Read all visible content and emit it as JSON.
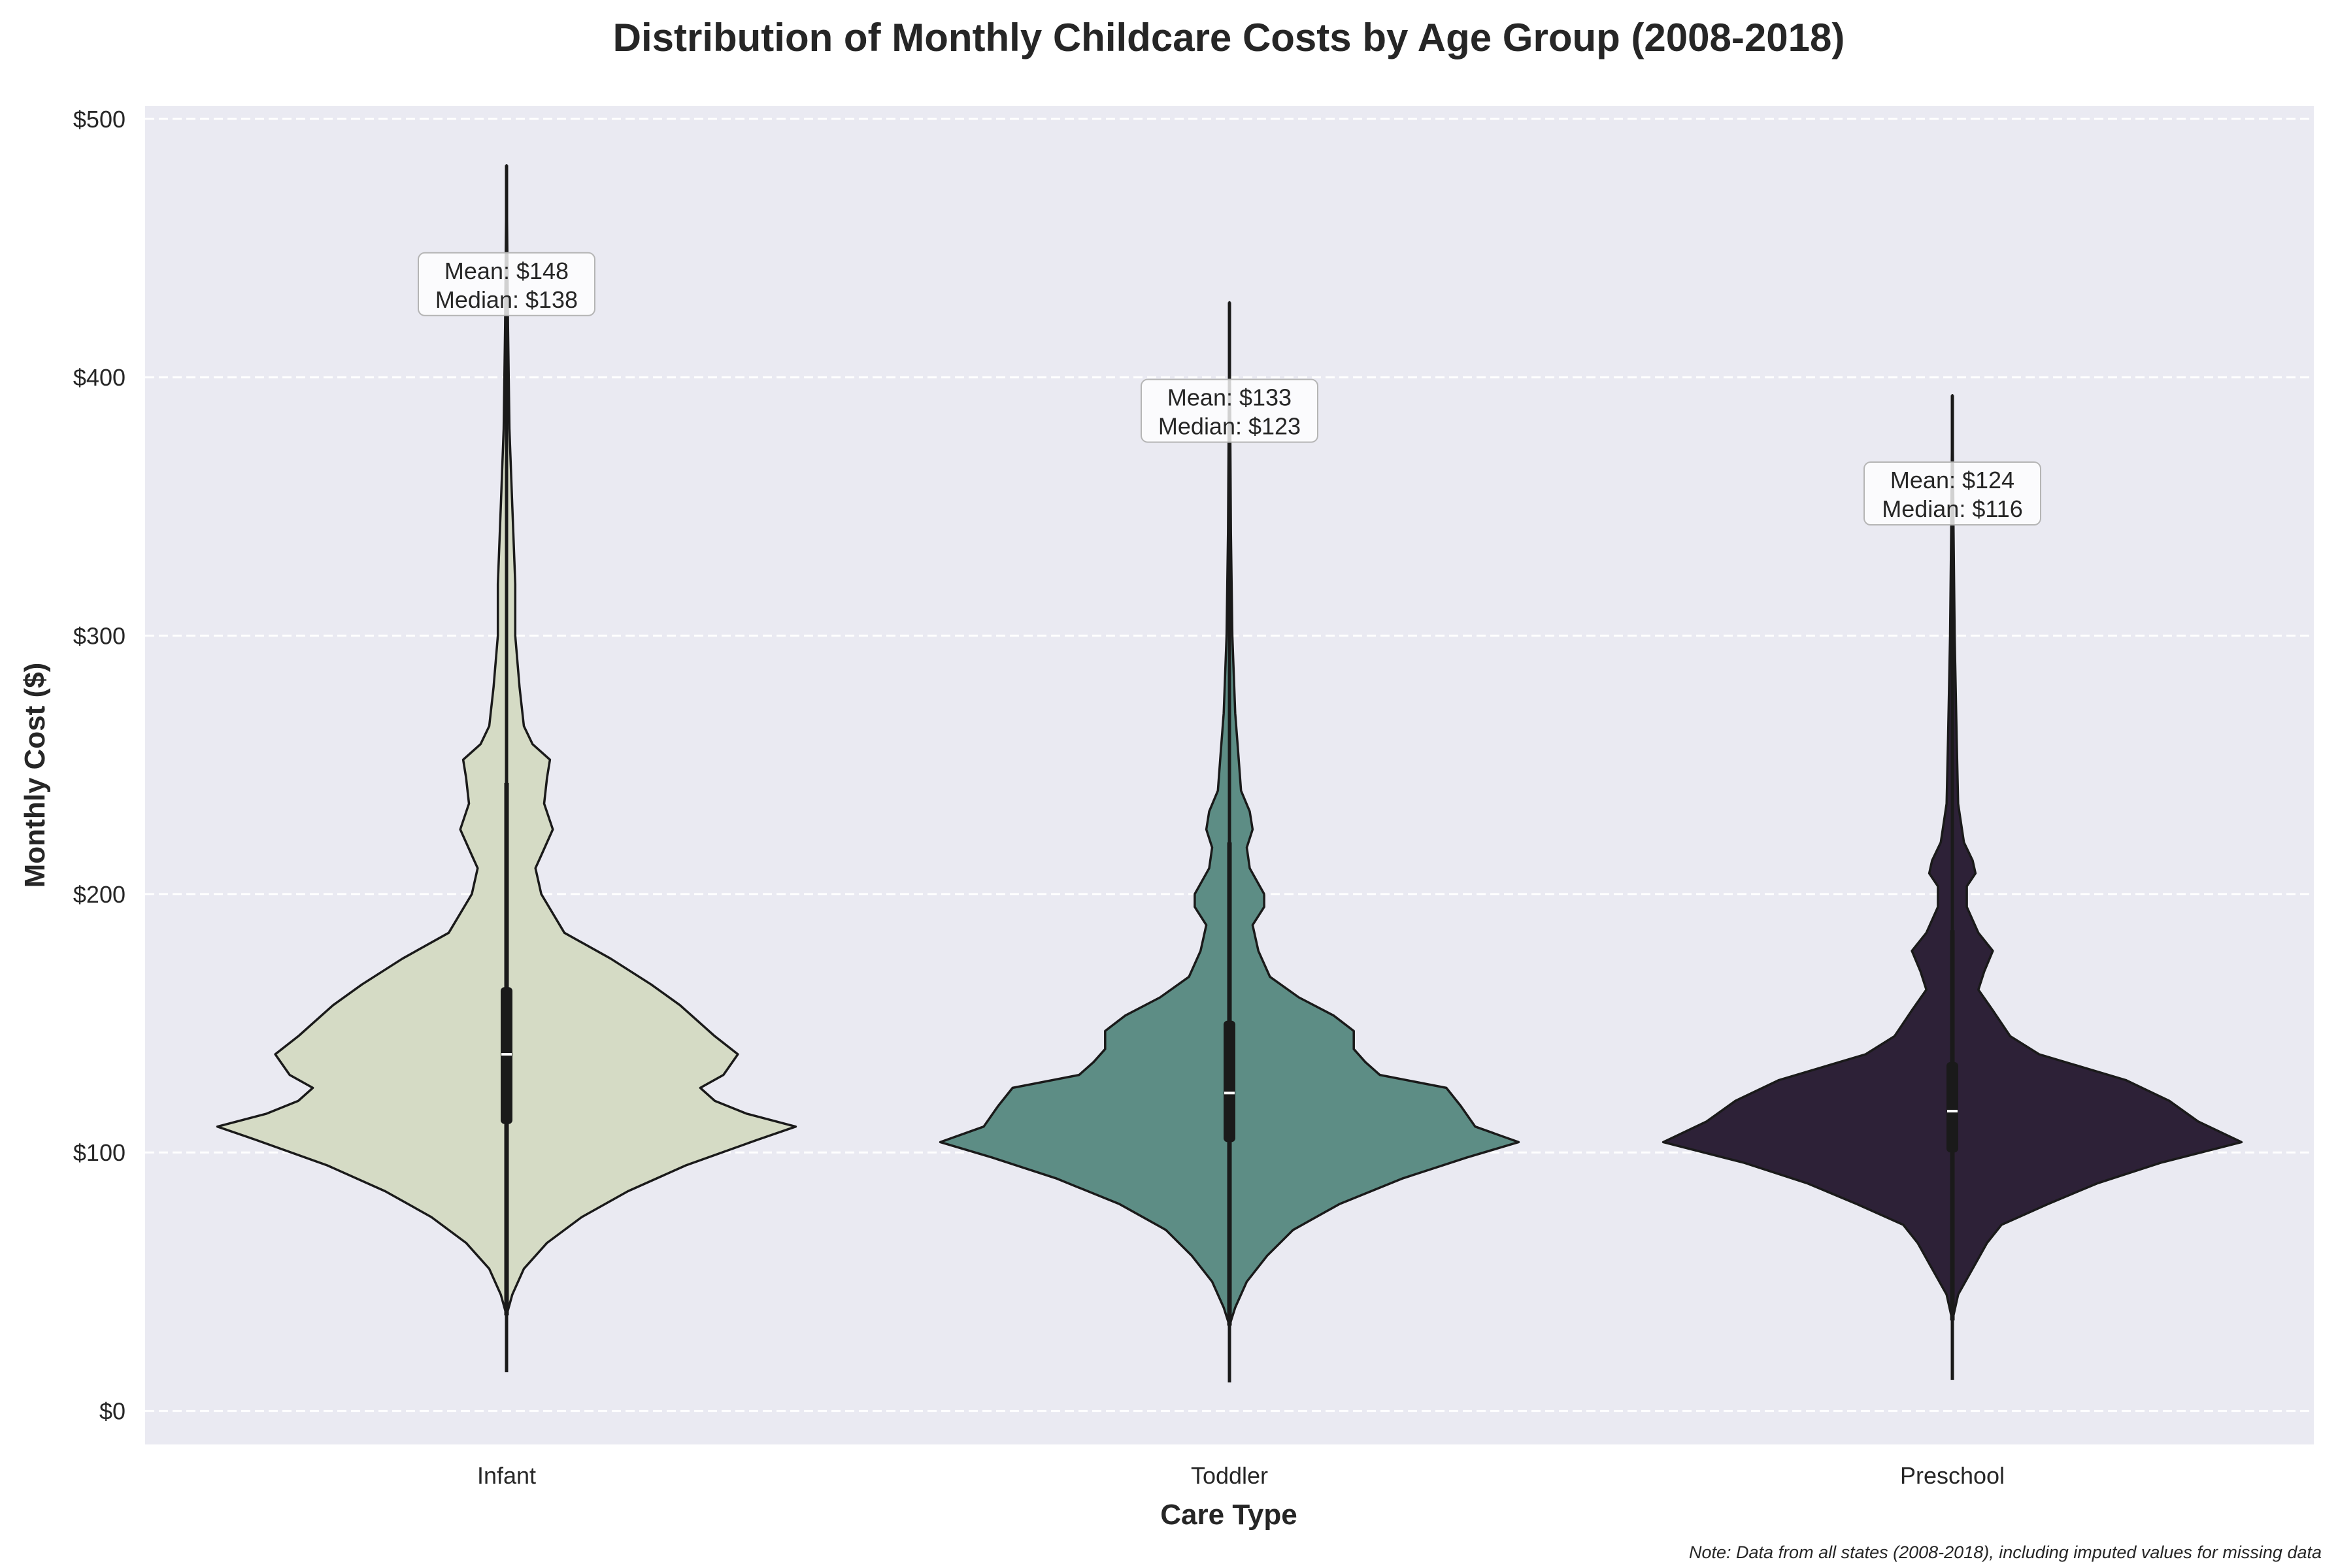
{
  "chart_data": {
    "type": "violin",
    "title": "Distribution of Monthly Childcare Costs by Age Group (2008-2018)",
    "xlabel": "Care Type",
    "ylabel": "Monthly Cost ($)",
    "ylim": [
      -13,
      505
    ],
    "y_ticks": [
      0,
      100,
      200,
      300,
      400,
      500
    ],
    "y_tick_labels": [
      "$0",
      "$100",
      "$200",
      "$300",
      "$400",
      "$500"
    ],
    "grid": "horizontal dashed",
    "note": "Note: Data from all states (2008-2018), including imputed values for missing data",
    "categories": [
      "Infant",
      "Toddler",
      "Preschool"
    ],
    "series": [
      {
        "category": "Infant",
        "color": "#d5dbc5",
        "min": 15,
        "max": 482,
        "q1": 111,
        "median": 138,
        "q3": 164,
        "whisker_low": 37,
        "whisker_high": 243,
        "mean": 148,
        "annotation": [
          "Mean: $148",
          "Median: $138"
        ],
        "annotation_y": 436,
        "density": [
          [
            37,
            0.0
          ],
          [
            45,
            0.02
          ],
          [
            55,
            0.06
          ],
          [
            65,
            0.14
          ],
          [
            75,
            0.26
          ],
          [
            85,
            0.42
          ],
          [
            95,
            0.62
          ],
          [
            105,
            0.87
          ],
          [
            110,
            1.0
          ],
          [
            115,
            0.83
          ],
          [
            120,
            0.72
          ],
          [
            125,
            0.67
          ],
          [
            130,
            0.75
          ],
          [
            138,
            0.8
          ],
          [
            145,
            0.72
          ],
          [
            150,
            0.67
          ],
          [
            157,
            0.6
          ],
          [
            165,
            0.5
          ],
          [
            175,
            0.36
          ],
          [
            185,
            0.2
          ],
          [
            200,
            0.12
          ],
          [
            210,
            0.1
          ],
          [
            215,
            0.12
          ],
          [
            225,
            0.16
          ],
          [
            235,
            0.13
          ],
          [
            245,
            0.14
          ],
          [
            252,
            0.15
          ],
          [
            258,
            0.09
          ],
          [
            265,
            0.06
          ],
          [
            280,
            0.045
          ],
          [
            300,
            0.03
          ],
          [
            320,
            0.03
          ],
          [
            350,
            0.02
          ],
          [
            380,
            0.01
          ],
          [
            420,
            0.005
          ],
          [
            482,
            0.0
          ]
        ]
      },
      {
        "category": "Toddler",
        "color": "#5d8d85",
        "min": 11,
        "max": 429,
        "q1": 104,
        "median": 123,
        "q3": 151,
        "whisker_low": 33,
        "whisker_high": 220,
        "mean": 133,
        "annotation": [
          "Mean: $133",
          "Median: $123"
        ],
        "annotation_y": 387,
        "density": [
          [
            33,
            0.0
          ],
          [
            40,
            0.02
          ],
          [
            50,
            0.06
          ],
          [
            60,
            0.13
          ],
          [
            70,
            0.22
          ],
          [
            80,
            0.38
          ],
          [
            90,
            0.6
          ],
          [
            98,
            0.82
          ],
          [
            104,
            1.0
          ],
          [
            110,
            0.85
          ],
          [
            118,
            0.8
          ],
          [
            125,
            0.75
          ],
          [
            130,
            0.52
          ],
          [
            135,
            0.47
          ],
          [
            140,
            0.43
          ],
          [
            147,
            0.43
          ],
          [
            153,
            0.36
          ],
          [
            160,
            0.24
          ],
          [
            168,
            0.14
          ],
          [
            178,
            0.1
          ],
          [
            188,
            0.08
          ],
          [
            195,
            0.12
          ],
          [
            200,
            0.12
          ],
          [
            210,
            0.07
          ],
          [
            218,
            0.06
          ],
          [
            225,
            0.08
          ],
          [
            232,
            0.07
          ],
          [
            240,
            0.04
          ],
          [
            255,
            0.03
          ],
          [
            270,
            0.02
          ],
          [
            300,
            0.01
          ],
          [
            340,
            0.005
          ],
          [
            429,
            0.0
          ]
        ]
      },
      {
        "category": "Preschool",
        "color": "#2d2137",
        "min": 12,
        "max": 393,
        "q1": 100,
        "median": 116,
        "q3": 135,
        "whisker_low": 35,
        "whisker_high": 186,
        "mean": 124,
        "annotation": [
          "Mean: $124",
          "Median: $116"
        ],
        "annotation_y": 355,
        "density": [
          [
            35,
            0.0
          ],
          [
            45,
            0.02
          ],
          [
            55,
            0.07
          ],
          [
            65,
            0.12
          ],
          [
            72,
            0.17
          ],
          [
            80,
            0.33
          ],
          [
            88,
            0.5
          ],
          [
            96,
            0.72
          ],
          [
            104,
            1.0
          ],
          [
            112,
            0.85
          ],
          [
            120,
            0.75
          ],
          [
            128,
            0.6
          ],
          [
            133,
            0.45
          ],
          [
            138,
            0.3
          ],
          [
            145,
            0.2
          ],
          [
            155,
            0.14
          ],
          [
            163,
            0.09
          ],
          [
            170,
            0.11
          ],
          [
            178,
            0.14
          ],
          [
            185,
            0.09
          ],
          [
            195,
            0.05
          ],
          [
            203,
            0.05
          ],
          [
            208,
            0.08
          ],
          [
            213,
            0.07
          ],
          [
            220,
            0.04
          ],
          [
            235,
            0.02
          ],
          [
            260,
            0.015
          ],
          [
            300,
            0.008
          ],
          [
            340,
            0.004
          ],
          [
            393,
            0.0
          ]
        ]
      }
    ]
  }
}
